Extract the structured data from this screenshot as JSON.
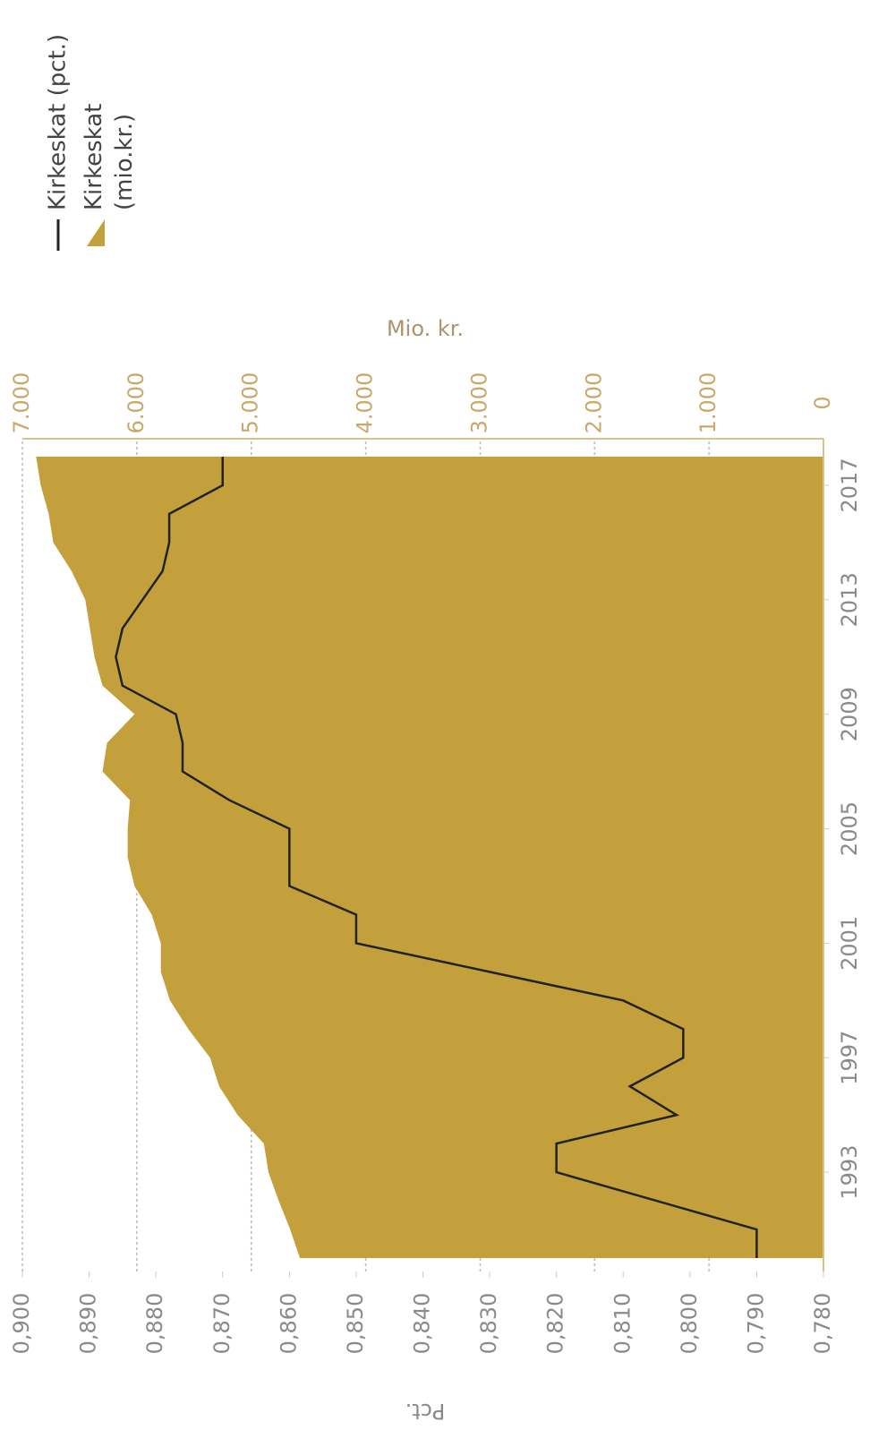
{
  "chart_data": {
    "type": "line",
    "x": [
      1990,
      1991,
      1992,
      1993,
      1994,
      1995,
      1996,
      1997,
      1998,
      1999,
      2000,
      2001,
      2002,
      2003,
      2004,
      2005,
      2006,
      2007,
      2008,
      2009,
      2010,
      2011,
      2012,
      2013,
      2014,
      2015,
      2016,
      2017,
      2018
    ],
    "xlim": [
      1990,
      2018
    ],
    "xticks": [
      1993,
      1997,
      2001,
      2005,
      2009,
      2013,
      2017
    ],
    "ylabel": "Pct.",
    "y2label": "Mio. kr.",
    "ylim": [
      0.78,
      0.9
    ],
    "yticks": [
      {
        "value": 0.78,
        "label": "0,780"
      },
      {
        "value": 0.79,
        "label": "0,790"
      },
      {
        "value": 0.8,
        "label": "0,800"
      },
      {
        "value": 0.81,
        "label": "0,810"
      },
      {
        "value": 0.82,
        "label": "0,820"
      },
      {
        "value": 0.83,
        "label": "0,830"
      },
      {
        "value": 0.84,
        "label": "0,840"
      },
      {
        "value": 0.85,
        "label": "0,850"
      },
      {
        "value": 0.86,
        "label": "0,860"
      },
      {
        "value": 0.87,
        "label": "0,870"
      },
      {
        "value": 0.88,
        "label": "0,880"
      },
      {
        "value": 0.89,
        "label": "0,890"
      },
      {
        "value": 0.9,
        "label": "0,900"
      }
    ],
    "y2lim": [
      0,
      7000
    ],
    "y2ticks": [
      0,
      {
        "value": 1000,
        "label": "1.000"
      },
      {
        "value": 2000,
        "label": "2.000"
      },
      {
        "value": 3000,
        "label": "3.000"
      },
      {
        "value": 4000,
        "label": "4.000"
      },
      {
        "value": 5000,
        "label": "5.000"
      },
      {
        "value": 6000,
        "label": "6.000"
      },
      {
        "value": 7000,
        "label": "7.000"
      }
    ],
    "grid": true,
    "series": [
      {
        "name": "Kirkeskat (pct.)",
        "type": "line",
        "color": "#222222",
        "values": [
          0.79,
          0.79,
          0.805,
          0.82,
          0.82,
          0.802,
          0.809,
          0.801,
          0.801,
          0.81,
          0.83,
          0.85,
          0.85,
          0.86,
          0.86,
          0.86,
          0.869,
          0.876,
          0.876,
          0.877,
          0.885,
          0.886,
          0.885,
          0.882,
          0.879,
          0.878,
          0.878,
          0.87,
          0.87
        ]
      },
      {
        "name": "Kirkeskat (mio.kr.)",
        "type": "area",
        "axis": "y2",
        "color": "#c4a03c",
        "values": [
          4575,
          4660,
          4760,
          4850,
          4890,
          5120,
          5280,
          5360,
          5550,
          5710,
          5790,
          5790,
          5870,
          6020,
          6080,
          6080,
          6060,
          6300,
          6260,
          6020,
          6300,
          6370,
          6410,
          6450,
          6570,
          6730,
          6770,
          6840,
          6880
        ]
      }
    ]
  }
}
